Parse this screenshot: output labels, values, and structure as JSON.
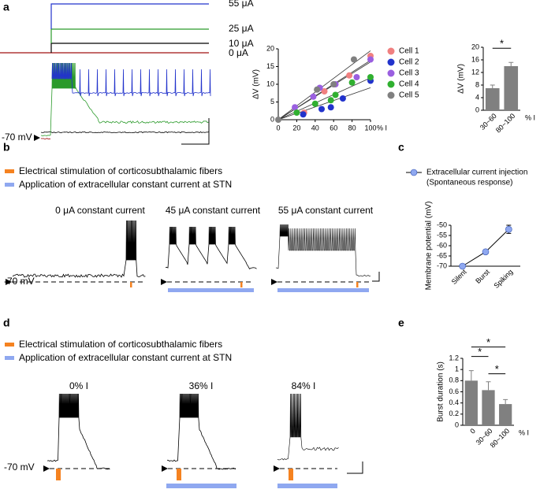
{
  "panel_labels": [
    "a",
    "b",
    "c",
    "d",
    "e"
  ],
  "panel_a": {
    "step_labels": [
      "55 μA",
      "25 μA",
      "10 μA",
      "0 μA"
    ],
    "resting": "-70 mV"
  },
  "panel_b": {
    "legend": [
      "Electrical stimulation of corticosubthalamic fibers",
      "Application of extracellular constant current at STN"
    ],
    "titles": [
      "0 μA constant current",
      "45 μA constant current",
      "55 μA constant current"
    ],
    "resting": "-70 mV"
  },
  "panel_d": {
    "legend": [
      "Electrical stimulation of corticosubthalamic fibers",
      "Application of extracellular constant current at STN"
    ],
    "titles": [
      "0% I",
      "36% I",
      "84% I"
    ],
    "resting": "-70 mV"
  },
  "chart_data": [
    {
      "type": "scatter",
      "x_label": "% I",
      "y_label": "ΔV (mV)",
      "xlim": [
        0,
        100
      ],
      "xticks": [
        0,
        20,
        40,
        60,
        80,
        100
      ],
      "ylim": [
        0,
        20
      ],
      "yticks": [
        0,
        5,
        10,
        15,
        20
      ],
      "series": [
        {
          "name": "Cell 1",
          "color": "#f08080",
          "x": [
            28,
            50,
            77,
            100
          ],
          "values": [
            2,
            8,
            12.5,
            18
          ]
        },
        {
          "name": "Cell 2",
          "color": "#2233cc",
          "x": [
            27,
            47,
            57,
            70,
            100
          ],
          "values": [
            1.5,
            3,
            3.5,
            6,
            11
          ]
        },
        {
          "name": "Cell 3",
          "color": "#9a5fe0",
          "x": [
            18,
            38,
            45,
            62,
            85,
            100
          ],
          "values": [
            3.5,
            6.5,
            9,
            10,
            12,
            17
          ]
        },
        {
          "name": "Cell 4",
          "color": "#30b030",
          "x": [
            20,
            40,
            57,
            62,
            80,
            100
          ],
          "values": [
            2,
            4.5,
            5.5,
            7,
            10.5,
            12
          ]
        },
        {
          "name": "Cell 5",
          "color": "#808080",
          "x": [
            0,
            42,
            60,
            82
          ],
          "values": [
            0,
            8.5,
            10,
            17
          ]
        }
      ]
    },
    {
      "type": "bar",
      "y_label": "ΔV (mV)",
      "x_label": "% I",
      "color": "#808080",
      "categories": [
        "30~60",
        "80~100"
      ],
      "values": [
        7,
        14
      ],
      "errors": [
        1,
        1.2
      ],
      "ylim": [
        0,
        20
      ],
      "yticks": [
        0,
        4,
        8,
        12,
        16,
        20
      ],
      "significance": [
        {
          "between": [
            "30~60",
            "80~100"
          ],
          "label": "*"
        }
      ]
    },
    {
      "type": "line",
      "y_label": "Membrane potential (mV)",
      "legend_note": "(Spontaneous response)",
      "categories": [
        "Silent",
        "Burst",
        "Spiking"
      ],
      "ylim": [
        -70,
        -50
      ],
      "yticks": [
        -70,
        -65,
        -60,
        -55,
        -50
      ],
      "series": [
        {
          "name": "Extracellular current injection",
          "color": "#8fa8f0",
          "values": [
            -70,
            -63,
            -52
          ],
          "errors": [
            0,
            1,
            2
          ]
        }
      ]
    },
    {
      "type": "bar",
      "y_label": "Burst duration (s)",
      "x_label": "% I",
      "color": "#808080",
      "categories": [
        "0",
        "30~60",
        "80~100"
      ],
      "values": [
        0.8,
        0.63,
        0.38
      ],
      "errors": [
        0.18,
        0.15,
        0.08
      ],
      "ylim": [
        0,
        1.2
      ],
      "yticks": [
        0,
        0.2,
        0.4,
        0.6,
        0.8,
        1,
        1.2
      ],
      "significance": [
        {
          "between": [
            "0",
            "30~60"
          ],
          "label": "*"
        },
        {
          "between": [
            "0",
            "80~100"
          ],
          "label": "*"
        },
        {
          "between": [
            "30~60",
            "80~100"
          ],
          "label": "*"
        }
      ]
    }
  ]
}
